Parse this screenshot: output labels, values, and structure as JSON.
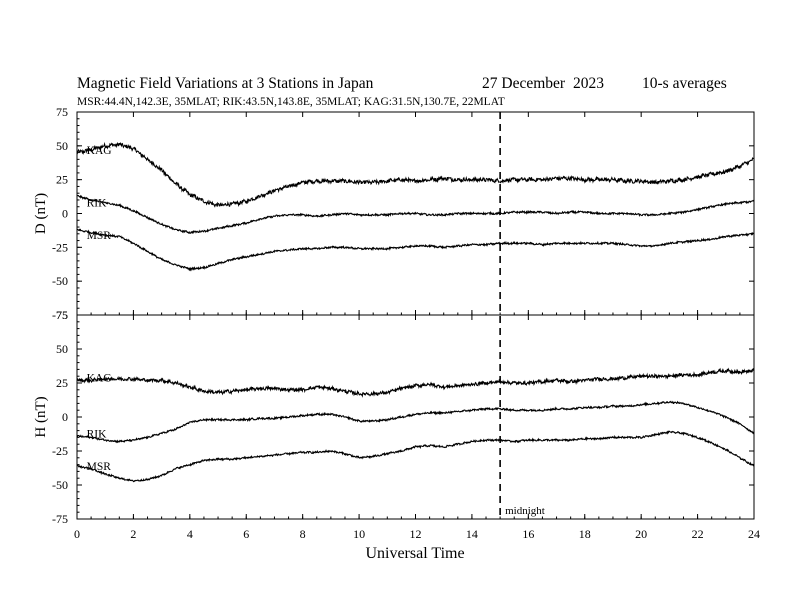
{
  "header": {
    "title": "Magnetic Field Variations at 3 Stations in Japan",
    "date": "27 December",
    "year": "2023",
    "averaging": "10-s averages",
    "stations_line": "MSR:44.4N,142.3E, 35MLAT;  RIK:43.5N,143.8E, 35MLAT;  KAG:31.5N,130.7E, 22MLAT"
  },
  "chart_data": [
    {
      "type": "line",
      "panel": "D",
      "ylabel": "D (nT)",
      "xlabel": "Universal Time",
      "xlim": [
        0,
        24
      ],
      "ylim": [
        -75,
        75
      ],
      "x_ticks": [
        "0",
        "2",
        "4",
        "6",
        "8",
        "10",
        "12",
        "14",
        "16",
        "18",
        "20",
        "22",
        "24"
      ],
      "y_ticks": [
        "75",
        "50",
        "25",
        "0",
        "-25",
        "-50",
        "-75"
      ],
      "annotation": "midnight",
      "midnight_ut": 15,
      "x": [
        0,
        0.5,
        1,
        1.5,
        2,
        2.5,
        3,
        3.5,
        4,
        4.5,
        5,
        5.5,
        6,
        6.5,
        7,
        7.5,
        8,
        8.5,
        9,
        9.5,
        10,
        10.5,
        11,
        11.5,
        12,
        12.5,
        13,
        13.5,
        14,
        14.5,
        15,
        15.5,
        16,
        16.5,
        17,
        17.5,
        18,
        18.5,
        19,
        19.5,
        20,
        20.5,
        21,
        21.5,
        22,
        22.5,
        23,
        23.5,
        24
      ],
      "series": [
        {
          "name": "KAG",
          "label_at": [
            0.2,
            47
          ],
          "noise": 1.3,
          "values": [
            45,
            47,
            50,
            51,
            48,
            40,
            32,
            22,
            14,
            9,
            6,
            7,
            9,
            13,
            17,
            20,
            23,
            24,
            24,
            24,
            23,
            23,
            24,
            25,
            24,
            25,
            26,
            25,
            25,
            25,
            24,
            25,
            25,
            25,
            26,
            26,
            25,
            25,
            25,
            24,
            24,
            23,
            24,
            25,
            27,
            29,
            31,
            35,
            40
          ]
        },
        {
          "name": "RIK",
          "label_at": [
            0.2,
            8
          ],
          "noise": 0.6,
          "values": [
            13,
            10,
            8,
            6,
            2,
            -3,
            -8,
            -12,
            -14,
            -13,
            -11,
            -9,
            -7,
            -4,
            -2,
            -1,
            -1,
            -2,
            -1,
            0,
            -1,
            -1,
            -1,
            0,
            0,
            -1,
            -1,
            0,
            0,
            0,
            0,
            1,
            1,
            1,
            0,
            1,
            1,
            0,
            0,
            0,
            -1,
            -1,
            0,
            1,
            3,
            5,
            7,
            8,
            9
          ]
        },
        {
          "name": "MSR",
          "label_at": [
            0.2,
            -16
          ],
          "noise": 0.6,
          "values": [
            -12,
            -14,
            -16,
            -17,
            -22,
            -28,
            -34,
            -38,
            -41,
            -40,
            -37,
            -34,
            -32,
            -30,
            -28,
            -27,
            -26,
            -26,
            -25,
            -25,
            -26,
            -26,
            -26,
            -25,
            -24,
            -24,
            -25,
            -24,
            -23,
            -23,
            -22,
            -22,
            -22,
            -23,
            -22,
            -22,
            -22,
            -22,
            -22,
            -23,
            -24,
            -24,
            -22,
            -21,
            -20,
            -19,
            -17,
            -16,
            -15
          ]
        }
      ]
    },
    {
      "type": "line",
      "panel": "H",
      "ylabel": "H (nT)",
      "xlabel": "Universal Time",
      "xlim": [
        0,
        24
      ],
      "ylim": [
        -75,
        75
      ],
      "x_ticks": [
        "0",
        "2",
        "4",
        "6",
        "8",
        "10",
        "12",
        "14",
        "16",
        "18",
        "20",
        "22",
        "24"
      ],
      "y_ticks": [
        "75",
        "50",
        "25",
        "0",
        "-25",
        "-50",
        "-75"
      ],
      "x": [
        0,
        0.5,
        1,
        1.5,
        2,
        2.5,
        3,
        3.5,
        4,
        4.5,
        5,
        5.5,
        6,
        6.5,
        7,
        7.5,
        8,
        8.5,
        9,
        9.5,
        10,
        10.5,
        11,
        11.5,
        12,
        12.5,
        13,
        13.5,
        14,
        14.5,
        15,
        15.5,
        16,
        16.5,
        17,
        17.5,
        18,
        18.5,
        19,
        19.5,
        20,
        20.5,
        21,
        21.5,
        22,
        22.5,
        23,
        23.5,
        24
      ],
      "series": [
        {
          "name": "KAG",
          "label_at": [
            0.2,
            29
          ],
          "noise": 1.1,
          "values": [
            27,
            27,
            28,
            28,
            28,
            27,
            27,
            25,
            22,
            19,
            18,
            19,
            20,
            21,
            21,
            20,
            20,
            22,
            21,
            19,
            17,
            17,
            18,
            21,
            23,
            24,
            22,
            23,
            24,
            25,
            26,
            25,
            25,
            26,
            27,
            26,
            27,
            28,
            28,
            29,
            30,
            30,
            30,
            31,
            31,
            33,
            34,
            33,
            34
          ]
        },
        {
          "name": "RIK",
          "label_at": [
            0.2,
            -12
          ],
          "noise": 0.6,
          "values": [
            -14,
            -15,
            -17,
            -18,
            -17,
            -15,
            -12,
            -9,
            -4,
            -2,
            -2,
            -2,
            -2,
            -1,
            -1,
            0,
            1,
            2,
            2,
            0,
            -3,
            -3,
            -2,
            0,
            2,
            3,
            3,
            4,
            5,
            6,
            6,
            5,
            5,
            5,
            6,
            6,
            7,
            7,
            8,
            8,
            9,
            10,
            11,
            10,
            7,
            4,
            0,
            -5,
            -12
          ]
        },
        {
          "name": "MSR",
          "label_at": [
            0.2,
            -36
          ],
          "noise": 0.6,
          "values": [
            -36,
            -38,
            -42,
            -45,
            -47,
            -46,
            -43,
            -38,
            -35,
            -32,
            -31,
            -31,
            -30,
            -29,
            -28,
            -27,
            -26,
            -26,
            -25,
            -27,
            -30,
            -29,
            -27,
            -25,
            -22,
            -21,
            -22,
            -20,
            -18,
            -17,
            -17,
            -18,
            -17,
            -17,
            -17,
            -17,
            -16,
            -16,
            -15,
            -15,
            -15,
            -13,
            -11,
            -12,
            -15,
            -19,
            -24,
            -30,
            -36
          ]
        }
      ]
    }
  ]
}
